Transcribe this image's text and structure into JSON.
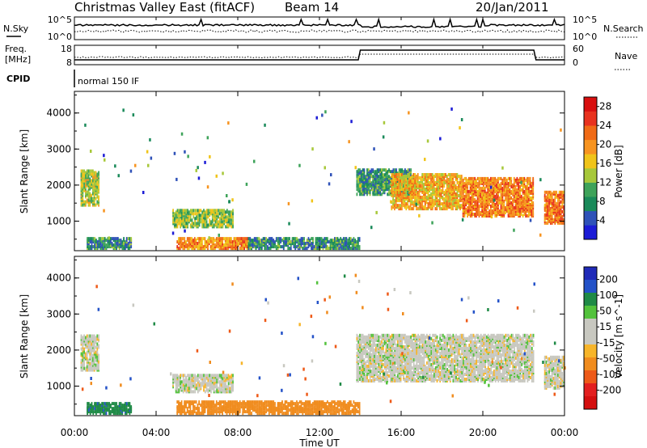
{
  "header": {
    "title": "Christmas Valley East (fitACF)",
    "beam": "Beam 14",
    "date": "20/Jan/2011"
  },
  "top_panels": {
    "nsky_label": "N.Sky",
    "nsky_ticks": [
      "10^5",
      "10^0"
    ],
    "nsearch_label": "N.Search",
    "nsearch_ticks": [
      "10^5",
      "10^0"
    ],
    "freq_label_1": "Freq.",
    "freq_label_2": "[MHz]",
    "freq_ticks": [
      "18",
      "8"
    ],
    "nave_label": "Nave",
    "nave_ticks": [
      "60",
      "0"
    ],
    "cpid_label": "CPID",
    "cpid_value": "normal 150 IF"
  },
  "x_axis": {
    "label": "Time UT",
    "ticks": [
      "00:00",
      "04:00",
      "08:00",
      "12:00",
      "16:00",
      "20:00",
      "00:00"
    ]
  },
  "colors": {
    "power_scale": [
      "#1c1cd6",
      "#2f52b8",
      "#1a8a5a",
      "#3ea35a",
      "#a7c83a",
      "#f0c419",
      "#f79420",
      "#f06a15",
      "#e8321e",
      "#d80f0f"
    ],
    "velocity_scale": [
      "#1f2ab8",
      "#2452c8",
      "#1f8a46",
      "#53c23c",
      "#c8c8c0",
      "#c8c8c0",
      "#f7b52a",
      "#f08c1e",
      "#ee5a18",
      "#e31f1f",
      "#d40f0f"
    ],
    "scatter_grey": "#c8c8c0"
  },
  "chart_data": [
    {
      "panel": "power",
      "type": "heatmap",
      "ylabel": "Slant Range [km]",
      "yticks": [
        "1000",
        "2000",
        "3000",
        "4000"
      ],
      "ylim": [
        180,
        4600
      ],
      "xlim": [
        0,
        24
      ],
      "colorbar": {
        "label": "Power [dB]",
        "ticks": [
          "4",
          "8",
          "12",
          "16",
          "20",
          "24",
          "28"
        ],
        "range": [
          0,
          30
        ]
      },
      "regions": [
        {
          "t0": 0.3,
          "t1": 1.2,
          "r0": 1400,
          "r1": 2400,
          "value": 14
        },
        {
          "t0": 0.6,
          "t1": 2.8,
          "r0": 200,
          "r1": 500,
          "value": 8
        },
        {
          "t0": 4.8,
          "t1": 7.8,
          "r0": 800,
          "r1": 1300,
          "value": 13
        },
        {
          "t0": 5.0,
          "t1": 8.5,
          "r0": 200,
          "r1": 500,
          "value": 20
        },
        {
          "t0": 8.5,
          "t1": 14.0,
          "r0": 200,
          "r1": 500,
          "value": 8
        },
        {
          "t0": 13.8,
          "t1": 16.5,
          "r0": 1700,
          "r1": 2400,
          "value": 9
        },
        {
          "t0": 15.5,
          "t1": 19.0,
          "r0": 1300,
          "r1": 2300,
          "value": 18
        },
        {
          "t0": 19.0,
          "t1": 22.5,
          "r0": 1100,
          "r1": 2200,
          "value": 21
        },
        {
          "t0": 23.0,
          "t1": 24.0,
          "r0": 900,
          "r1": 1800,
          "value": 22
        }
      ]
    },
    {
      "panel": "velocity",
      "type": "heatmap",
      "ylabel": "Slant Range [km]",
      "yticks": [
        "1000",
        "2000",
        "3000",
        "4000"
      ],
      "ylim": [
        180,
        4600
      ],
      "xlim": [
        0,
        24
      ],
      "colorbar": {
        "label": "Velocity [m s^-1]",
        "ticks": [
          "200",
          "100",
          "50",
          "15",
          "-15",
          "-50",
          "-100",
          "-200"
        ]
      },
      "regions": [
        {
          "t0": 0.3,
          "t1": 1.2,
          "r0": 1400,
          "r1": 2400,
          "value": 0
        },
        {
          "t0": 0.6,
          "t1": 2.8,
          "r0": 200,
          "r1": 500,
          "value": 60
        },
        {
          "t0": 4.8,
          "t1": 7.8,
          "r0": 800,
          "r1": 1300,
          "value": 0
        },
        {
          "t0": 5.0,
          "t1": 14.0,
          "r0": 200,
          "r1": 550,
          "value": -50
        },
        {
          "t0": 13.8,
          "t1": 22.5,
          "r0": 1100,
          "r1": 2400,
          "value": 0
        },
        {
          "t0": 23.0,
          "t1": 24.0,
          "r0": 900,
          "r1": 1800,
          "value": 0
        }
      ]
    }
  ]
}
